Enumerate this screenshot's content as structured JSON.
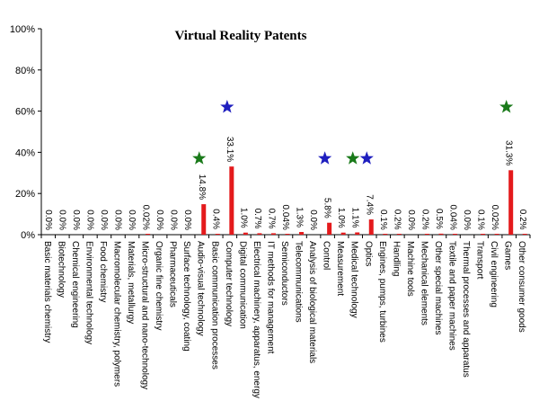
{
  "chart_data": {
    "type": "bar",
    "title": "Virtual Reality Patents",
    "xlabel": "",
    "ylabel": "",
    "ylim": [
      0,
      100
    ],
    "yticks": [
      "0%",
      "20%",
      "40%",
      "60%",
      "80%",
      "100%"
    ],
    "grid": false,
    "categories": [
      "Basic materials chemistry",
      "Biotechnology",
      "Chemical engineering",
      "Environmental technology",
      "Food chemistry",
      "Macromolecular chemistry, polymers",
      "Materials, metallurgy",
      "Micro-structural and nano-technology",
      "Organic fine chemistry",
      "Pharmaceuticals",
      "Surface technology, coating",
      "Audio-visual technology",
      "Basic communication processes",
      "Computer technology",
      "Digital communication",
      "Electrical machinery, apparatus, energy",
      "IT methods for management",
      "Semiconductors",
      "Telecommunications",
      "Analysis of biological materials",
      "Control",
      "Measurement",
      "Medical technology",
      "Optics",
      "Engines, pumps, turbines",
      "Handling",
      "Machine tools",
      "Mechanical elements",
      "Other special machines",
      "Textile and paper machines",
      "Thermal processes and apparatus",
      "Transport",
      "Civil engineering",
      "Games",
      "Other consumer goods"
    ],
    "values": [
      0.0,
      0.0,
      0.0,
      0.0,
      0.0,
      0.0,
      0.0,
      0.02,
      0.0,
      0.0,
      0.0,
      14.8,
      0.4,
      33.1,
      1.0,
      0.7,
      0.7,
      0.04,
      1.3,
      0.0,
      5.8,
      1.0,
      1.1,
      7.4,
      0.1,
      0.2,
      0.0,
      0.2,
      0.5,
      0.04,
      0.0,
      0.1,
      0.02,
      31.3,
      0.2
    ],
    "value_labels": [
      "0.0%",
      "0.0%",
      "0.0%",
      "0.0%",
      "0.0%",
      "0.0%",
      "0.0%",
      "0.02%",
      "0.0%",
      "0.0%",
      "0.0%",
      "14.8%",
      "0.4%",
      "33.1%",
      "1.0%",
      "0.7%",
      "0.7%",
      "0.04%",
      "1.3%",
      "0.0%",
      "5.8%",
      "1.0%",
      "1.1%",
      "7.4%",
      "0.1%",
      "0.2%",
      "0.0%",
      "0.2%",
      "0.5%",
      "0.04%",
      "0.0%",
      "0.1%",
      "0.02%",
      "31.3%",
      "0.2%"
    ],
    "bar_color": "#e41a1c",
    "markers": [
      {
        "category": "Audio-visual technology",
        "shape": "star",
        "color": "#1a7a1a",
        "y": 37
      },
      {
        "category": "Computer technology",
        "shape": "star",
        "color": "#1f1fbf",
        "y": 62
      },
      {
        "category": "Control",
        "shape": "star",
        "color": "#1f1fbf",
        "y": 37
      },
      {
        "category": "Medical technology",
        "shape": "star",
        "color": "#1a7a1a",
        "y": 37
      },
      {
        "category": "Optics",
        "shape": "star",
        "color": "#1f1fbf",
        "y": 37
      },
      {
        "category": "Games",
        "shape": "star",
        "color": "#1a7a1a",
        "y": 62
      }
    ]
  }
}
